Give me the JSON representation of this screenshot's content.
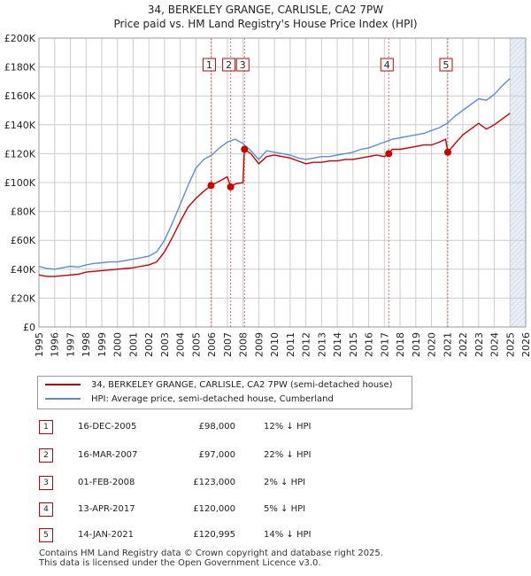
{
  "title_line1": "34, BERKELEY GRANGE, CARLISLE, CA2 7PW",
  "title_line2": "Price paid vs. HM Land Registry's House Price Index (HPI)",
  "legend": {
    "property_label": "34, BERKELEY GRANGE, CARLISLE, CA2 7PW (semi-detached house)",
    "hpi_label": "HPI: Average price, semi-detached house, Cumberland"
  },
  "colors": {
    "property": "#cc0000",
    "hpi": "#5b8ed6",
    "grid": "#cccccc",
    "shade": "#e8eef8",
    "marker_line": "#e06666"
  },
  "transactions": [
    {
      "num": "1",
      "date": "16-DEC-2005",
      "price": "£98,000",
      "hpi": "12% ↓ HPI"
    },
    {
      "num": "2",
      "date": "16-MAR-2007",
      "price": "£97,000",
      "hpi": "22% ↓ HPI"
    },
    {
      "num": "3",
      "date": "01-FEB-2008",
      "price": "£123,000",
      "hpi": "2% ↓ HPI"
    },
    {
      "num": "4",
      "date": "13-APR-2017",
      "price": "£120,000",
      "hpi": "5% ↓ HPI"
    },
    {
      "num": "5",
      "date": "14-JAN-2021",
      "price": "£120,995",
      "hpi": "14% ↓ HPI"
    }
  ],
  "footer": {
    "line1": "Contains HM Land Registry data © Crown copyright and database right 2025.",
    "line2": "This data is licensed under the Open Government Licence v3.0."
  },
  "chart_data": {
    "type": "line",
    "title": "34, BERKELEY GRANGE, CARLISLE, CA2 7PW — Price paid vs. HM Land Registry's House Price Index (HPI)",
    "xlabel": "",
    "ylabel": "",
    "xlim": [
      1995,
      2026
    ],
    "ylim": [
      0,
      200000
    ],
    "x_ticks": [
      1995,
      1996,
      1997,
      1998,
      1999,
      2000,
      2001,
      2002,
      2003,
      2004,
      2005,
      2006,
      2007,
      2008,
      2009,
      2010,
      2011,
      2012,
      2013,
      2014,
      2015,
      2016,
      2017,
      2018,
      2019,
      2020,
      2021,
      2022,
      2023,
      2024,
      2025,
      2026
    ],
    "y_ticks": [
      0,
      20000,
      40000,
      60000,
      80000,
      100000,
      120000,
      140000,
      160000,
      180000,
      200000
    ],
    "y_tick_labels": [
      "£0",
      "£20K",
      "£40K",
      "£60K",
      "£80K",
      "£100K",
      "£120K",
      "£140K",
      "£160K",
      "£180K",
      "£200K"
    ],
    "future_shade_from": 2025.0,
    "series": [
      {
        "name": "HPI: Average price, semi-detached house, Cumberland",
        "x": [
          1995.0,
          1995.5,
          1996.0,
          1996.5,
          1997.0,
          1997.5,
          1998.0,
          1998.5,
          1999.0,
          1999.5,
          2000.0,
          2000.5,
          2001.0,
          2001.5,
          2002.0,
          2002.5,
          2003.0,
          2003.5,
          2004.0,
          2004.5,
          2005.0,
          2005.5,
          2006.0,
          2006.5,
          2007.0,
          2007.5,
          2008.0,
          2008.5,
          2009.0,
          2009.5,
          2010.0,
          2010.5,
          2011.0,
          2011.5,
          2012.0,
          2012.5,
          2013.0,
          2013.5,
          2014.0,
          2014.5,
          2015.0,
          2015.5,
          2016.0,
          2016.5,
          2017.0,
          2017.5,
          2018.0,
          2018.5,
          2019.0,
          2019.5,
          2020.0,
          2020.5,
          2021.0,
          2021.5,
          2022.0,
          2022.5,
          2023.0,
          2023.5,
          2024.0,
          2024.5,
          2025.0
        ],
        "values": [
          42000,
          40500,
          40000,
          41000,
          42000,
          41500,
          43000,
          44000,
          44500,
          45000,
          45000,
          46000,
          47000,
          48000,
          49000,
          52000,
          60000,
          72000,
          85000,
          98000,
          110000,
          116000,
          119000,
          124000,
          128000,
          130000,
          127000,
          122000,
          116000,
          122000,
          121000,
          120000,
          119000,
          117000,
          116000,
          117000,
          118000,
          118000,
          119000,
          120000,
          121000,
          123000,
          124000,
          126000,
          128000,
          130000,
          131000,
          132000,
          133000,
          134000,
          136000,
          138000,
          141000,
          146000,
          150000,
          154000,
          158000,
          157000,
          161000,
          167000,
          172000
        ]
      },
      {
        "name": "34, BERKELEY GRANGE, CARLISLE, CA2 7PW (semi-detached house)",
        "x": [
          1995.0,
          1995.5,
          1996.0,
          1996.5,
          1997.0,
          1997.5,
          1998.0,
          1998.5,
          1999.0,
          1999.5,
          2000.0,
          2000.5,
          2001.0,
          2001.5,
          2002.0,
          2002.5,
          2003.0,
          2003.5,
          2004.0,
          2004.5,
          2005.0,
          2005.5,
          2005.96,
          2006.5,
          2007.0,
          2007.21,
          2007.5,
          2008.0,
          2008.09,
          2008.5,
          2009.0,
          2009.5,
          2010.0,
          2010.5,
          2011.0,
          2011.5,
          2012.0,
          2012.5,
          2013.0,
          2013.5,
          2014.0,
          2014.5,
          2015.0,
          2015.5,
          2016.0,
          2016.5,
          2017.0,
          2017.28,
          2017.5,
          2018.0,
          2018.5,
          2019.0,
          2019.5,
          2020.0,
          2020.5,
          2020.9,
          2021.04,
          2021.5,
          2022.0,
          2022.5,
          2023.0,
          2023.5,
          2024.0,
          2024.5,
          2025.0
        ],
        "values": [
          36000,
          35000,
          35000,
          35500,
          36000,
          36500,
          38000,
          38500,
          39000,
          39500,
          40000,
          40500,
          41000,
          42000,
          43000,
          45000,
          52000,
          62000,
          73000,
          83000,
          89000,
          94000,
          98000,
          101000,
          104000,
          97000,
          99000,
          100000,
          123000,
          120000,
          113000,
          118000,
          119000,
          118000,
          117000,
          115000,
          113000,
          114000,
          114000,
          115000,
          115000,
          116000,
          116000,
          117000,
          118000,
          119000,
          118000,
          120000,
          123000,
          123000,
          124000,
          125000,
          126000,
          126000,
          128000,
          130000,
          120995,
          127000,
          133000,
          137000,
          141000,
          137000,
          140000,
          144000,
          148000
        ]
      }
    ],
    "markers": [
      {
        "label": "1",
        "x": 2005.96,
        "value": 98000
      },
      {
        "label": "2",
        "x": 2007.21,
        "value": 97000
      },
      {
        "label": "3",
        "x": 2008.09,
        "value": 123000
      },
      {
        "label": "4",
        "x": 2017.28,
        "value": 120000
      },
      {
        "label": "5",
        "x": 2021.04,
        "value": 120995
      }
    ]
  }
}
